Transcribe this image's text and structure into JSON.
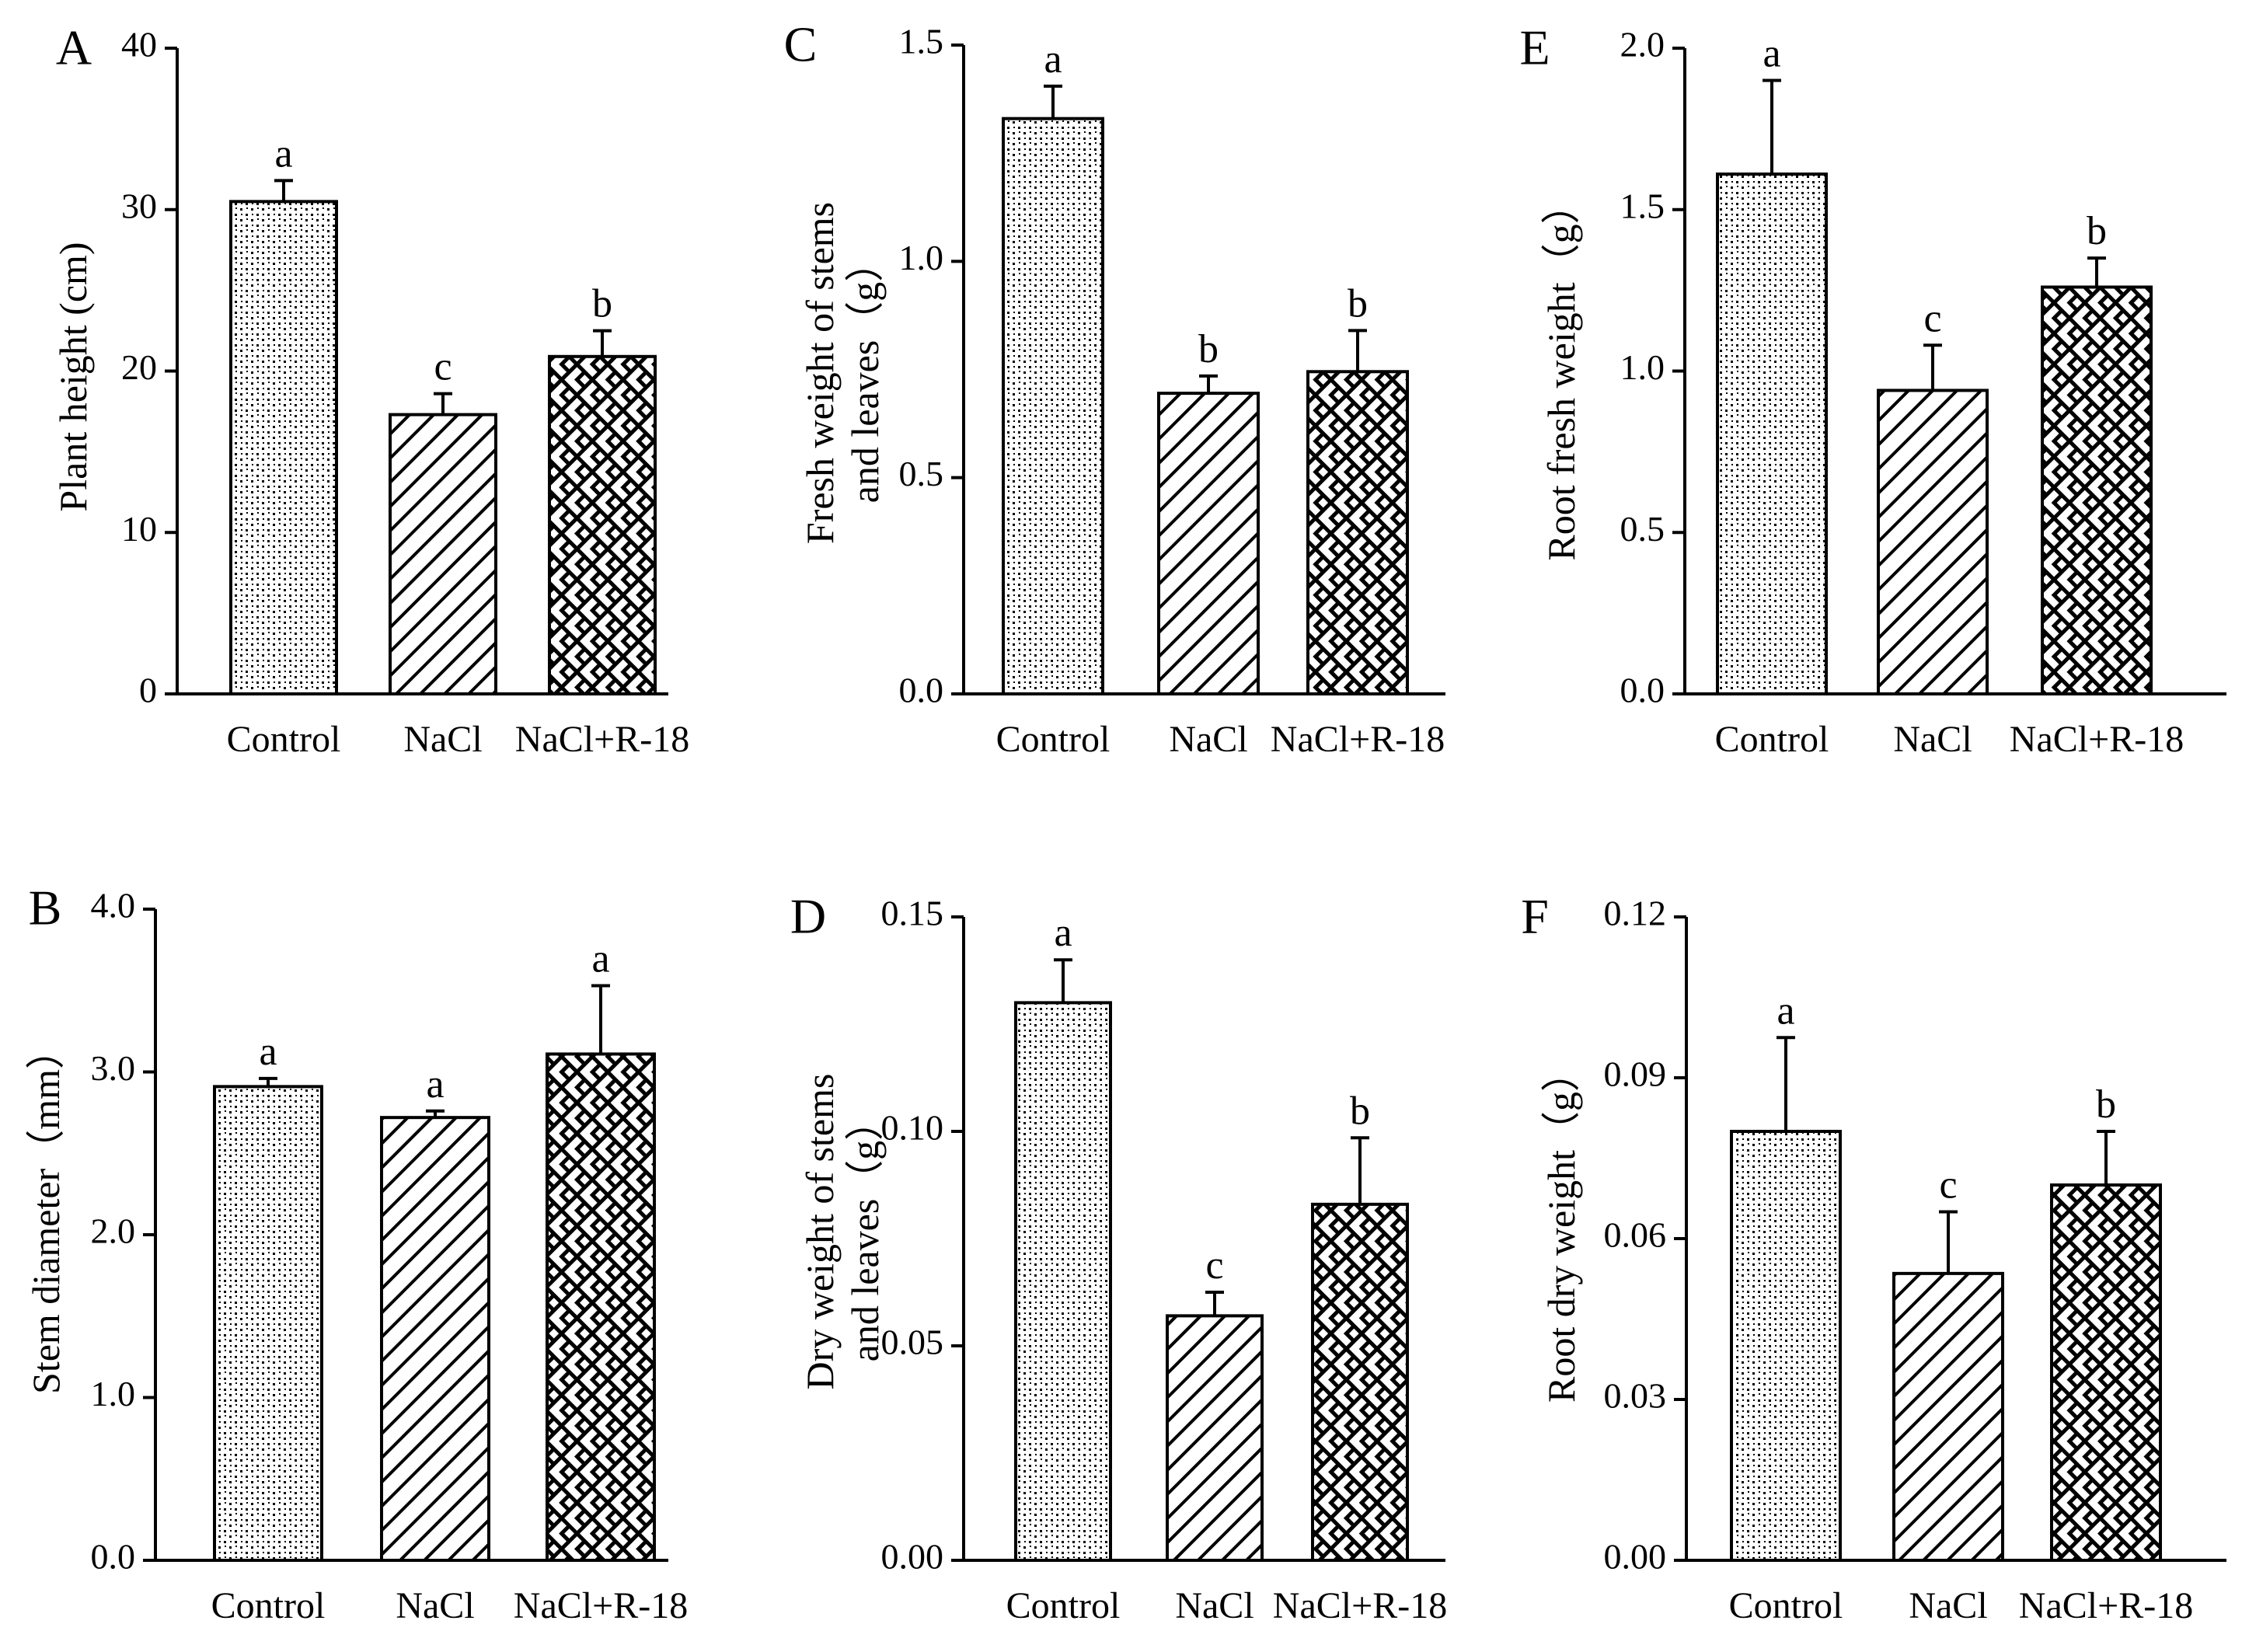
{
  "chart_data": [
    {
      "panel_label": "A",
      "type": "bar",
      "categories": [
        "Control",
        "NaCl",
        "NaCl+R-18"
      ],
      "values": [
        30.5,
        17.3,
        20.9
      ],
      "errors": [
        1.3,
        1.3,
        1.6
      ],
      "letters": [
        "a",
        "c",
        "b"
      ],
      "ylabel": "Plant height (cm)",
      "ylim": [
        0,
        40
      ],
      "yticks": [
        "0",
        "10",
        "20",
        "30",
        "40"
      ],
      "patterns": [
        "dots",
        "diagonal",
        "weave"
      ]
    },
    {
      "panel_label": "B",
      "type": "bar",
      "categories": [
        "Control",
        "NaCl",
        "NaCl+R-18"
      ],
      "values": [
        2.91,
        2.72,
        3.11
      ],
      "errors": [
        0.05,
        0.04,
        0.42
      ],
      "letters": [
        "a",
        "a",
        "a"
      ],
      "ylabel": "Stem diameter（mm）",
      "ylim": [
        0,
        4
      ],
      "yticks": [
        "0.0",
        "1.0",
        "2.0",
        "3.0",
        "4.0"
      ],
      "patterns": [
        "dots",
        "diagonal",
        "weave"
      ]
    },
    {
      "panel_label": "C",
      "type": "bar",
      "categories": [
        "Control",
        "NaCl",
        "NaCl+R-18"
      ],
      "values": [
        1.33,
        0.695,
        0.745
      ],
      "errors": [
        0.075,
        0.04,
        0.095
      ],
      "letters": [
        "a",
        "b",
        "b"
      ],
      "ylabel": [
        "Fresh weight of stems",
        "and leaves（g）"
      ],
      "ylim": [
        0,
        1.5
      ],
      "yticks": [
        "0.0",
        "0.5",
        "1.0",
        "1.5"
      ],
      "patterns": [
        "dots",
        "diagonal",
        "weave"
      ]
    },
    {
      "panel_label": "D",
      "type": "bar",
      "categories": [
        "Control",
        "NaCl",
        "NaCl+R-18"
      ],
      "values": [
        0.13,
        0.057,
        0.083
      ],
      "errors": [
        0.01,
        0.0055,
        0.0155
      ],
      "letters": [
        "a",
        "c",
        "b"
      ],
      "ylabel": [
        "Dry weight of stems",
        "and leaves（g）"
      ],
      "ylim": [
        0,
        0.15
      ],
      "yticks": [
        "0.00",
        "0.05",
        "0.10",
        "0.15"
      ],
      "patterns": [
        "dots",
        "diagonal",
        "weave"
      ]
    },
    {
      "panel_label": "E",
      "type": "bar",
      "categories": [
        "Control",
        "NaCl",
        "NaCl+R-18"
      ],
      "values": [
        1.61,
        0.94,
        1.26
      ],
      "errors": [
        0.29,
        0.14,
        0.09
      ],
      "letters": [
        "a",
        "c",
        "b"
      ],
      "ylabel": "Root fresh weight（g）",
      "ylim": [
        0,
        2
      ],
      "yticks": [
        "0.0",
        "0.5",
        "1.0",
        "1.5",
        "2.0"
      ],
      "patterns": [
        "dots",
        "diagonal",
        "weave"
      ]
    },
    {
      "panel_label": "F",
      "type": "bar",
      "categories": [
        "Control",
        "NaCl",
        "NaCl+R-18"
      ],
      "values": [
        0.08,
        0.0535,
        0.07
      ],
      "errors": [
        0.0175,
        0.0115,
        0.01
      ],
      "letters": [
        "a",
        "c",
        "b"
      ],
      "ylabel": "Root dry weight（g）",
      "ylim": [
        0,
        0.12
      ],
      "yticks": [
        "0.00",
        "0.03",
        "0.06",
        "0.09",
        "0.12"
      ],
      "patterns": [
        "dots",
        "diagonal",
        "weave"
      ]
    }
  ]
}
